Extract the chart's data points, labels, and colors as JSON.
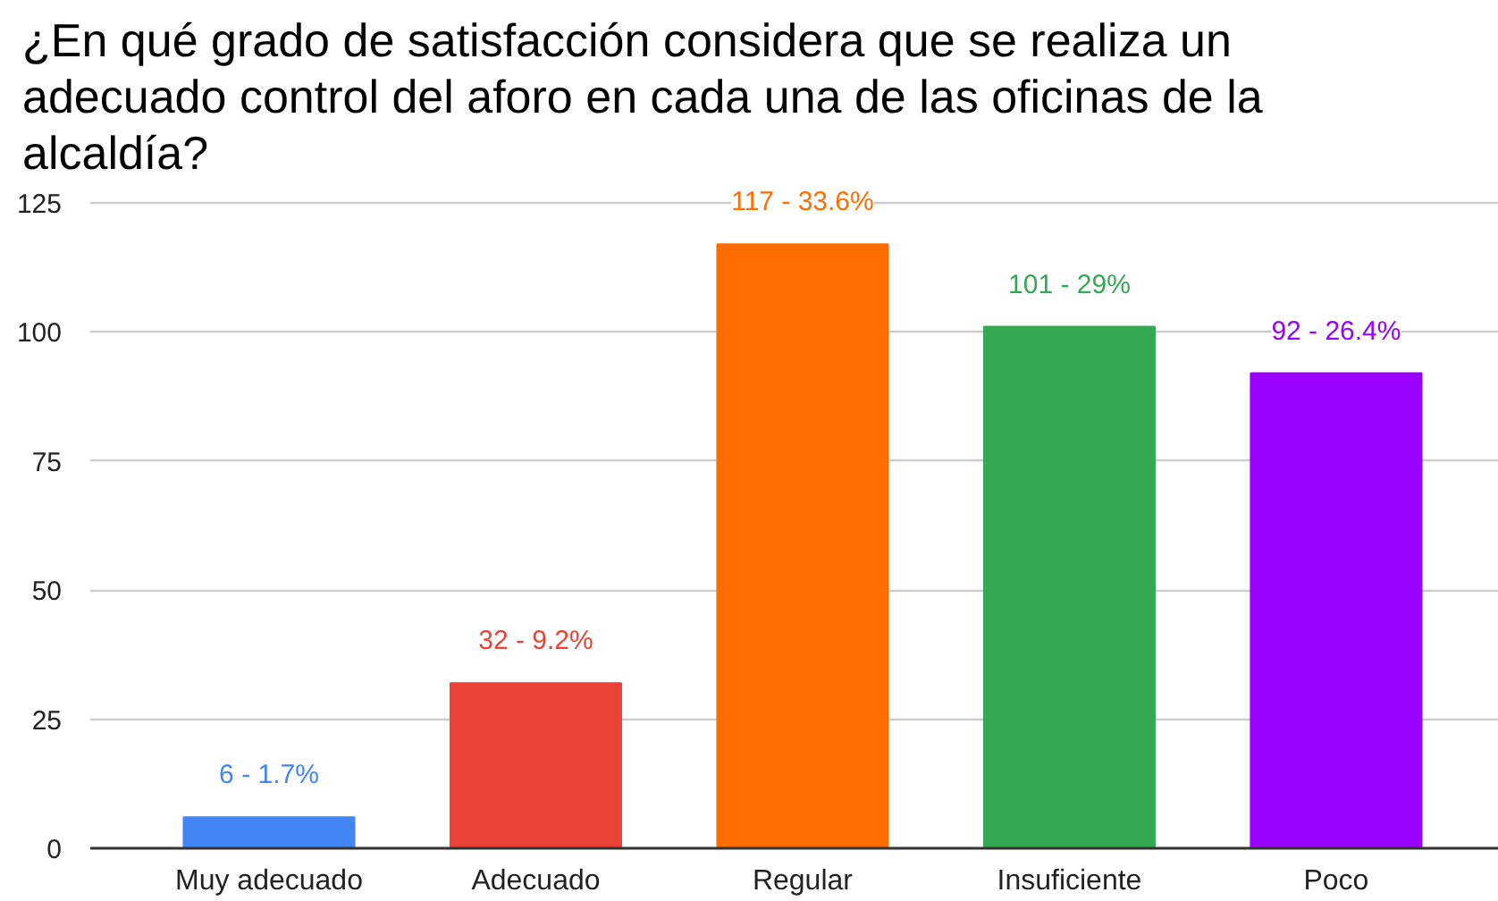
{
  "chart_data": {
    "type": "bar",
    "title": "¿En qué grado de satisfacción considera que se realiza un adecuado control del aforo en cada una de las oficinas de la alcaldía?",
    "categories": [
      "Muy adecuado",
      "Adecuado",
      "Regular",
      "Insuficiente",
      "Poco"
    ],
    "values": [
      6,
      32,
      117,
      101,
      92
    ],
    "colors": [
      "#4285f4",
      "#ea4335",
      "#ff6d01",
      "#34a853",
      "#9900ff"
    ],
    "value_labels": [
      "6 - 1.7%",
      "32 - 9.2%",
      "117 - 33.6%",
      "101 - 29%",
      "92 - 26.4%"
    ],
    "ylim": [
      0,
      125
    ],
    "yticks": [
      0,
      25,
      50,
      75,
      100,
      125
    ],
    "grid": "y"
  }
}
